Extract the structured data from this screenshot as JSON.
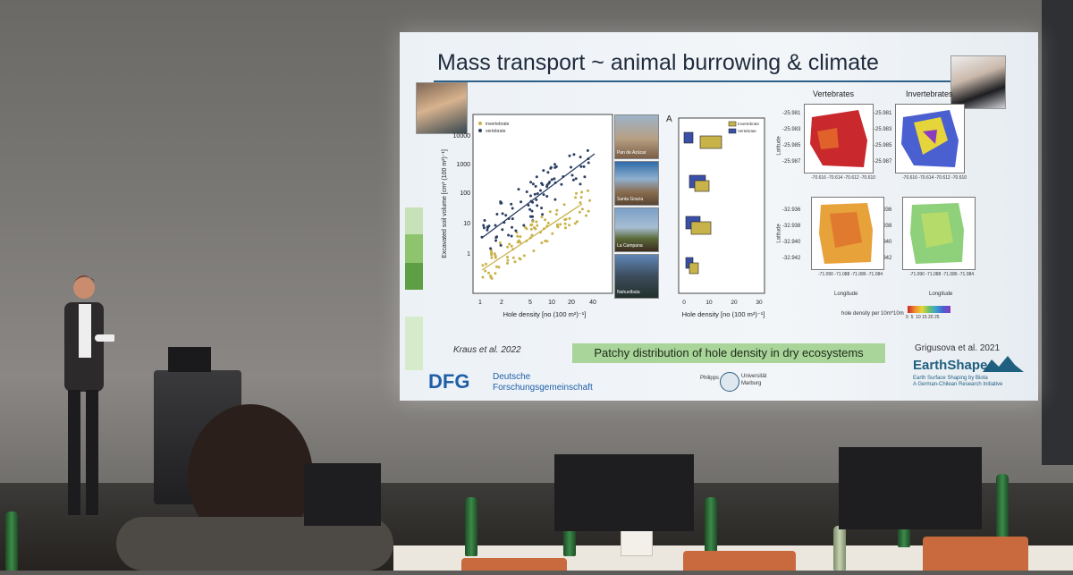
{
  "slide": {
    "title": "Mass transport ~ animal burrowing & climate",
    "scatter": {
      "legend": [
        "invertebrate",
        "vertebrate"
      ],
      "ylabel": "Excavated soil volume [cm³ (100 m²)⁻¹]",
      "xlabel": "Hole density [no (100 m²)⁻¹]",
      "yticks": [
        "10000",
        "1000",
        "100",
        "10",
        "1"
      ],
      "xticks": [
        "1",
        "2",
        "5",
        "10",
        "20",
        "40"
      ]
    },
    "sites": [
      "Pan de Azúcar",
      "Santa Gracia",
      "La Campana",
      "Nahuelbuta"
    ],
    "boxplot": {
      "panel_letter": "A",
      "legend": [
        "Invertebrate",
        "Vertebrate"
      ],
      "xlabel": "Hole density [no (100 m²)⁻¹]",
      "xticks": [
        "0",
        "10",
        "20",
        "30"
      ]
    },
    "maps": {
      "col1": "Vertebrates",
      "col2": "Invertebrates",
      "ylabel": "Latitude",
      "xlabel": "Longitude",
      "top_lat_ticks": [
        "-25.981",
        "-25.983",
        "-25.985",
        "-25.987"
      ],
      "top_lon_ticks": [
        "-70.616",
        "-70.614",
        "-70.612",
        "-70.610"
      ],
      "bottom_lat_ticks": [
        "-32.936",
        "-32.938",
        "-32.940",
        "-32.942"
      ],
      "bottom_lon_ticks": [
        "-71.090",
        "-71.088",
        "-71.086",
        "-71.084"
      ],
      "colorbar_label": "hole density per 10m*10m",
      "colorbar_ticks": [
        "0",
        "5",
        "10",
        "15",
        "20",
        "25"
      ]
    },
    "citation_left": "Kraus et al. 2022",
    "citation_right": "Grigusova et al. 2021",
    "caption": "Patchy distribution of hole density in dry ecosystems",
    "dfg_logo": "DFG",
    "dfg_name_1": "Deutsche",
    "dfg_name_2": "Forschungsgemeinschaft",
    "marburg_1": "Philipps",
    "marburg_2": "Universität",
    "marburg_3": "Marburg",
    "earthshape": "EarthShape",
    "earthshape_sub_1": "Earth Surface Shaping by Biota",
    "earthshape_sub_2": "A German-Chilean Research Initiative"
  },
  "colors": {
    "slide_bg": "#eef3f7",
    "title_line": "#2d5f86",
    "invertebrate": "#c8b24a",
    "vertebrate": "#2b3e63",
    "caption_bg": "#a9d49a"
  }
}
